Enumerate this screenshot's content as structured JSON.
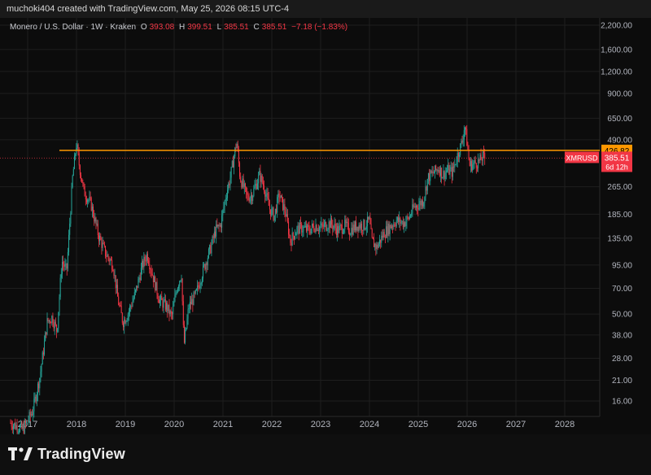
{
  "header": {
    "text": "muchoki404 created with TradingView.com, May 25, 2026 08:15 UTC-4"
  },
  "legend": {
    "symbol_desc": "Monero / U.S. Dollar · 1W · Kraken",
    "o_label": "O",
    "o_value": "393.08",
    "h_label": "H",
    "h_value": "399.51",
    "l_label": "L",
    "l_value": "385.51",
    "c_label": "C",
    "c_value": "385.51",
    "change": "−7.18 (−1.83%)"
  },
  "footer": {
    "brand": "TradingView"
  },
  "colors": {
    "up": "#26a69a",
    "down": "#f23645",
    "hline": "#ff9800",
    "background": "#0c0c0c",
    "grid": "#1e1e1e",
    "axis_text": "#b2b5be"
  },
  "chart_data": {
    "type": "candlestick",
    "symbol": "XMRUSD",
    "title": "Monero / U.S. Dollar · 1W · Kraken",
    "y_scale": "log",
    "grid": true,
    "y_ticks": [
      16,
      21,
      28,
      38,
      50,
      70,
      95,
      135,
      185,
      265,
      490,
      650,
      900,
      1200,
      1600,
      2200
    ],
    "y_tick_labels": [
      "16.00",
      "21.00",
      "28.00",
      "38.00",
      "50.00",
      "70.00",
      "95.00",
      "135.00",
      "185.00",
      "265.00",
      "490.00",
      "650.00",
      "900.00",
      "1,200.00",
      "1,600.00",
      "2,200.00"
    ],
    "x_ticks": [
      "2017",
      "2018",
      "2019",
      "2020",
      "2021",
      "2022",
      "2023",
      "2024",
      "2025",
      "2026",
      "2027",
      "2028"
    ],
    "x_range": [
      2016.6,
      2028.5
    ],
    "horizontal_line": {
      "value": 426.82,
      "label": "426.82",
      "x_start": 2017.65
    },
    "last_price": {
      "value": 385.51,
      "label": "385.51",
      "symbol_label": "XMRUSD",
      "countdown": "6d 12h"
    },
    "price_path": [
      [
        2016.65,
        12
      ],
      [
        2016.9,
        11
      ],
      [
        2017.1,
        14
      ],
      [
        2017.25,
        22
      ],
      [
        2017.4,
        45
      ],
      [
        2017.5,
        48
      ],
      [
        2017.6,
        40
      ],
      [
        2017.7,
        100
      ],
      [
        2017.8,
        88
      ],
      [
        2017.92,
        300
      ],
      [
        2018.0,
        470
      ],
      [
        2018.05,
        360
      ],
      [
        2018.15,
        250
      ],
      [
        2018.3,
        210
      ],
      [
        2018.45,
        140
      ],
      [
        2018.6,
        110
      ],
      [
        2018.75,
        95
      ],
      [
        2018.85,
        60
      ],
      [
        2018.95,
        45
      ],
      [
        2019.05,
        50
      ],
      [
        2019.2,
        65
      ],
      [
        2019.35,
        95
      ],
      [
        2019.45,
        110
      ],
      [
        2019.55,
        85
      ],
      [
        2019.7,
        60
      ],
      [
        2019.85,
        55
      ],
      [
        2019.95,
        48
      ],
      [
        2020.05,
        70
      ],
      [
        2020.15,
        85
      ],
      [
        2020.2,
        33
      ],
      [
        2020.3,
        55
      ],
      [
        2020.45,
        65
      ],
      [
        2020.6,
        90
      ],
      [
        2020.75,
        120
      ],
      [
        2020.85,
        150
      ],
      [
        2020.95,
        160
      ],
      [
        2021.05,
        230
      ],
      [
        2021.15,
        300
      ],
      [
        2021.28,
        480
      ],
      [
        2021.35,
        300
      ],
      [
        2021.5,
        230
      ],
      [
        2021.6,
        240
      ],
      [
        2021.75,
        310
      ],
      [
        2021.85,
        260
      ],
      [
        2021.95,
        200
      ],
      [
        2022.05,
        180
      ],
      [
        2022.15,
        240
      ],
      [
        2022.28,
        190
      ],
      [
        2022.38,
        130
      ],
      [
        2022.5,
        150
      ],
      [
        2022.6,
        155
      ],
      [
        2022.75,
        150
      ],
      [
        2022.9,
        160
      ],
      [
        2023.0,
        155
      ],
      [
        2023.1,
        160
      ],
      [
        2023.2,
        165
      ],
      [
        2023.35,
        150
      ],
      [
        2023.5,
        160
      ],
      [
        2023.6,
        150
      ],
      [
        2023.75,
        160
      ],
      [
        2023.9,
        160
      ],
      [
        2024.0,
        170
      ],
      [
        2024.05,
        130
      ],
      [
        2024.15,
        120
      ],
      [
        2024.3,
        145
      ],
      [
        2024.45,
        160
      ],
      [
        2024.55,
        170
      ],
      [
        2024.7,
        165
      ],
      [
        2024.8,
        175
      ],
      [
        2024.9,
        200
      ],
      [
        2025.0,
        210
      ],
      [
        2025.1,
        220
      ],
      [
        2025.2,
        300
      ],
      [
        2025.32,
        320
      ],
      [
        2025.42,
        340
      ],
      [
        2025.5,
        310
      ],
      [
        2025.6,
        330
      ],
      [
        2025.7,
        320
      ],
      [
        2025.8,
        400
      ],
      [
        2025.9,
        480
      ],
      [
        2025.95,
        600
      ],
      [
        2026.0,
        470
      ],
      [
        2026.05,
        350
      ],
      [
        2026.15,
        360
      ],
      [
        2026.25,
        370
      ],
      [
        2026.32,
        393
      ],
      [
        2026.38,
        385.51
      ]
    ]
  }
}
